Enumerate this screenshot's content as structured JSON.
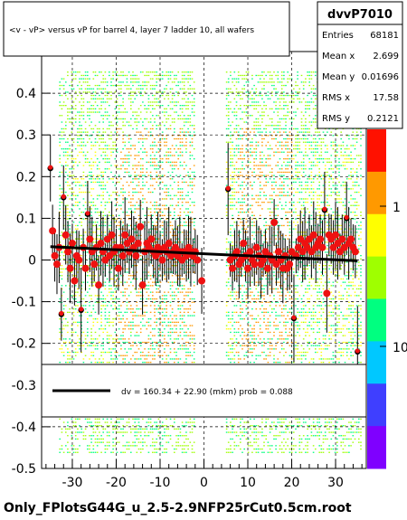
{
  "chart_data": {
    "type": "scatter",
    "title": "<v - vP>       versus   vP for barrel 4, layer 7 ladder 10, all wafers",
    "xlim": [
      -37,
      37
    ],
    "ylim": [
      -0.5,
      0.5
    ],
    "x_ticks": [
      "-30",
      "-20",
      "-10",
      "0",
      "10",
      "20",
      "30"
    ],
    "y_ticks": [
      "-0.5",
      "-0.4",
      "-0.3",
      "-0.2",
      "-0.1",
      "0",
      "0.1",
      "0.2",
      "0.3",
      "0.4"
    ],
    "z_scale": "log",
    "z_ticks": [
      "1",
      "10"
    ],
    "grid": true,
    "stats": {
      "name": "dvvP7010",
      "rows": [
        {
          "label": "Entries",
          "value": "68181"
        },
        {
          "label": "Mean x",
          "value": "2.699"
        },
        {
          "label": "Mean y",
          "value": "0.01696"
        },
        {
          "label": "RMS x",
          "value": "17.58"
        },
        {
          "label": "RMS y",
          "value": "0.2121"
        }
      ]
    },
    "fit_legend": "dv =  160.34 + 22.90 (mkm) prob = 0.088",
    "fit_line": {
      "x": [
        -35,
        35
      ],
      "y": [
        0.032,
        -0.002
      ]
    },
    "series": [
      {
        "values": [
          {
            "x": -35,
            "y": 0.22
          },
          {
            "x": -34.5,
            "y": 0.07
          },
          {
            "x": -34,
            "y": 0.01
          },
          {
            "x": -33.5,
            "y": -0.01
          },
          {
            "x": -33,
            "y": 0.03
          },
          {
            "x": -32.5,
            "y": -0.13
          },
          {
            "x": -32,
            "y": 0.15
          },
          {
            "x": -31.5,
            "y": 0.06
          },
          {
            "x": -31,
            "y": 0.02
          },
          {
            "x": -30.5,
            "y": -0.02
          },
          {
            "x": -30,
            "y": 0.04
          },
          {
            "x": -29.5,
            "y": -0.05
          },
          {
            "x": -29,
            "y": 0.01
          },
          {
            "x": -28.5,
            "y": 0.0
          },
          {
            "x": -28,
            "y": -0.12
          },
          {
            "x": -27.5,
            "y": 0.03
          },
          {
            "x": -27,
            "y": -0.02
          },
          {
            "x": -26.5,
            "y": 0.11
          },
          {
            "x": -26,
            "y": 0.05
          },
          {
            "x": -25.5,
            "y": 0.02
          },
          {
            "x": -25,
            "y": -0.01
          },
          {
            "x": -24.5,
            "y": 0.03
          },
          {
            "x": -24,
            "y": -0.06
          },
          {
            "x": -23.5,
            "y": 0.04
          },
          {
            "x": -23,
            "y": 0.02
          },
          {
            "x": -22.5,
            "y": 0.0
          },
          {
            "x": -22,
            "y": 0.05
          },
          {
            "x": -21.5,
            "y": 0.01
          },
          {
            "x": -21,
            "y": 0.06
          },
          {
            "x": -20.5,
            "y": 0.02
          },
          {
            "x": -20,
            "y": 0.03
          },
          {
            "x": -19.5,
            "y": -0.02
          },
          {
            "x": -19,
            "y": 0.03
          },
          {
            "x": -18.5,
            "y": 0.01
          },
          {
            "x": -18,
            "y": 0.06
          },
          {
            "x": -17.5,
            "y": 0.04
          },
          {
            "x": -17,
            "y": 0.02
          },
          {
            "x": -16.5,
            "y": 0.05
          },
          {
            "x": -16,
            "y": 0.03
          },
          {
            "x": -15.5,
            "y": 0.01
          },
          {
            "x": -15,
            "y": 0.04
          },
          {
            "x": -14.5,
            "y": 0.08
          },
          {
            "x": -14,
            "y": -0.06
          },
          {
            "x": -13.5,
            "y": 0.02
          },
          {
            "x": -13,
            "y": 0.04
          },
          {
            "x": -12.5,
            "y": 0.03
          },
          {
            "x": -12,
            "y": 0.05
          },
          {
            "x": -11.5,
            "y": 0.02
          },
          {
            "x": -11,
            "y": 0.01
          },
          {
            "x": -10.5,
            "y": 0.03
          },
          {
            "x": -10,
            "y": 0.02
          },
          {
            "x": -9.5,
            "y": 0.0
          },
          {
            "x": -9,
            "y": 0.03
          },
          {
            "x": -8.5,
            "y": 0.02
          },
          {
            "x": -8,
            "y": 0.04
          },
          {
            "x": -7.5,
            "y": 0.01
          },
          {
            "x": -7,
            "y": 0.02
          },
          {
            "x": -6.5,
            "y": 0.03
          },
          {
            "x": -6,
            "y": 0.01
          },
          {
            "x": -5.5,
            "y": 0.02
          },
          {
            "x": -5,
            "y": 0.0
          },
          {
            "x": -4.5,
            "y": 0.02
          },
          {
            "x": -4,
            "y": 0.01
          },
          {
            "x": -3.5,
            "y": 0.03
          },
          {
            "x": -3,
            "y": 0.02
          },
          {
            "x": -2.5,
            "y": 0.01
          },
          {
            "x": -2,
            "y": 0.02
          },
          {
            "x": -1.5,
            "y": 0.0
          },
          {
            "x": -0.5,
            "y": -0.05
          },
          {
            "x": 5.5,
            "y": 0.17
          },
          {
            "x": 6,
            "y": 0.0
          },
          {
            "x": 6.5,
            "y": -0.02
          },
          {
            "x": 7,
            "y": 0.01
          },
          {
            "x": 7.5,
            "y": 0.02
          },
          {
            "x": 8,
            "y": -0.01
          },
          {
            "x": 8.5,
            "y": 0.0
          },
          {
            "x": 9,
            "y": 0.04
          },
          {
            "x": 9.5,
            "y": 0.01
          },
          {
            "x": 10,
            "y": -0.02
          },
          {
            "x": 10.5,
            "y": 0.02
          },
          {
            "x": 11,
            "y": 0.0
          },
          {
            "x": 11.5,
            "y": -0.01
          },
          {
            "x": 12,
            "y": 0.03
          },
          {
            "x": 12.5,
            "y": 0.01
          },
          {
            "x": 13,
            "y": -0.01
          },
          {
            "x": 13.5,
            "y": 0.0
          },
          {
            "x": 14,
            "y": 0.02
          },
          {
            "x": 14.5,
            "y": -0.02
          },
          {
            "x": 15,
            "y": 0.01
          },
          {
            "x": 15.5,
            "y": 0.0
          },
          {
            "x": 16,
            "y": 0.09
          },
          {
            "x": 16.5,
            "y": -0.01
          },
          {
            "x": 17,
            "y": 0.02
          },
          {
            "x": 17.5,
            "y": 0.0
          },
          {
            "x": 18,
            "y": -0.02
          },
          {
            "x": 18.5,
            "y": 0.01
          },
          {
            "x": 19,
            "y": -0.02
          },
          {
            "x": 19.5,
            "y": -0.01
          },
          {
            "x": 20,
            "y": 0.02
          },
          {
            "x": 20.5,
            "y": -0.14
          },
          {
            "x": 21,
            "y": 0.01
          },
          {
            "x": 21.5,
            "y": 0.03
          },
          {
            "x": 22,
            "y": 0.05
          },
          {
            "x": 22.5,
            "y": 0.02
          },
          {
            "x": 23,
            "y": 0.04
          },
          {
            "x": 23.5,
            "y": 0.03
          },
          {
            "x": 24,
            "y": 0.05
          },
          {
            "x": 24.5,
            "y": 0.02
          },
          {
            "x": 25,
            "y": 0.06
          },
          {
            "x": 25.5,
            "y": 0.03
          },
          {
            "x": 26,
            "y": 0.04
          },
          {
            "x": 26.5,
            "y": 0.05
          },
          {
            "x": 27,
            "y": 0.03
          },
          {
            "x": 27.5,
            "y": 0.12
          },
          {
            "x": 28,
            "y": -0.08
          },
          {
            "x": 28.5,
            "y": 0.06
          },
          {
            "x": 29,
            "y": 0.05
          },
          {
            "x": 29.5,
            "y": 0.03
          },
          {
            "x": 30,
            "y": 0.06
          },
          {
            "x": 30.5,
            "y": 0.04
          },
          {
            "x": 31,
            "y": 0.02
          },
          {
            "x": 31.5,
            "y": 0.05
          },
          {
            "x": 32,
            "y": 0.03
          },
          {
            "x": 32.5,
            "y": 0.1
          },
          {
            "x": 33,
            "y": 0.04
          },
          {
            "x": 33.5,
            "y": 0.05
          },
          {
            "x": 34,
            "y": 0.03
          },
          {
            "x": 34.5,
            "y": 0.02
          },
          {
            "x": 35,
            "y": -0.22
          }
        ]
      }
    ]
  },
  "footer": "Only_FPlotsG44G_u_2.5-2.9NFP25rCut0.5cm.root",
  "colors": {
    "background": "#ffffff",
    "markers": "#ee1111",
    "error_bars": "#000000",
    "fit_line": "#000000",
    "palette": [
      "#7f00ff",
      "#3f3fff",
      "#00c8ff",
      "#00ff80",
      "#9fff00",
      "#ffff00",
      "#ff9900",
      "#ff1100"
    ]
  }
}
